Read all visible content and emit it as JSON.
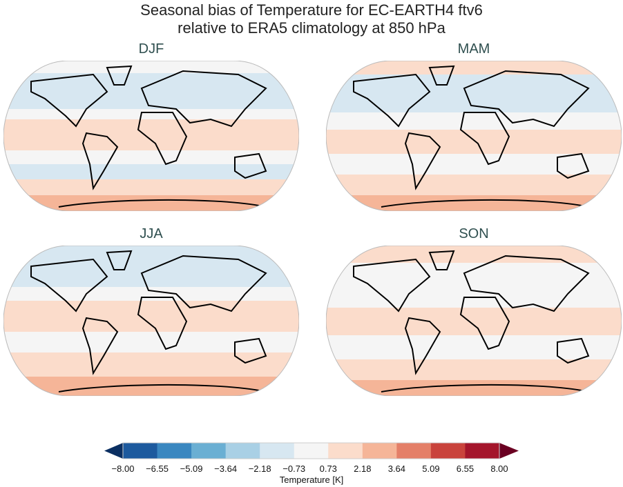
{
  "title_line1": "Seasonal bias of Temperature for EC-EARTH4 ftv6",
  "title_line2": "relative to ERA5 climatology at 850 hPa",
  "panels": [
    {
      "label": "DJF"
    },
    {
      "label": "MAM"
    },
    {
      "label": "JJA"
    },
    {
      "label": "SON"
    }
  ],
  "colorbar": {
    "label": "Temperature [K]",
    "ticks": [
      "−8.00",
      "−6.55",
      "−5.09",
      "−3.64",
      "−2.18",
      "−0.73",
      "0.73",
      "2.18",
      "3.64",
      "5.09",
      "6.55",
      "8.00"
    ],
    "colors": [
      "#1d5a9e",
      "#3a87c0",
      "#6aafd3",
      "#a9d0e5",
      "#d7e7f1",
      "#f5f5f5",
      "#fbdccb",
      "#f5b598",
      "#e47f68",
      "#c9433c",
      "#a4152b"
    ],
    "under_color": "#0b2f62",
    "over_color": "#6b0022",
    "extend": "both"
  }
}
